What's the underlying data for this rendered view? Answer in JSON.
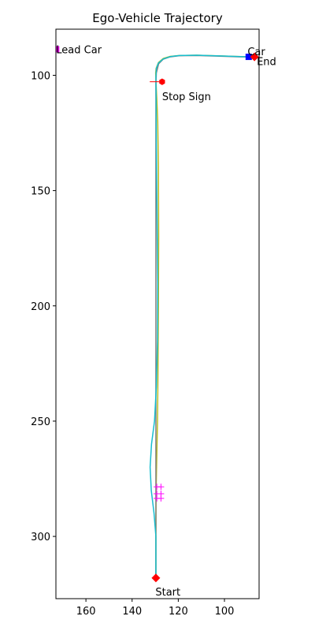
{
  "chart_data": {
    "type": "line",
    "title": "Ego-Vehicle Trajectory",
    "xlabel": "",
    "ylabel": "",
    "xlim": [
      173,
      85
    ],
    "ylim": [
      327,
      80
    ],
    "x_inverted": true,
    "y_inverted": true,
    "grid": false,
    "xticks": [
      160,
      140,
      120,
      100
    ],
    "yticks": [
      100,
      150,
      200,
      250,
      300
    ],
    "series": [
      {
        "color": "#bcbd22",
        "x": [
          129.7,
          129.7,
          129.6,
          129.3,
          129.0,
          128.8,
          128.6,
          128.5,
          128.6,
          128.9,
          129.3,
          129.6,
          129.7,
          129.8,
          129.6,
          128.6,
          126.5,
          123.5,
          119.5,
          112.0,
          102.0,
          93.0,
          89.0
        ],
        "y": [
          318,
          300,
          280,
          265,
          250,
          230,
          200,
          170,
          140,
          120,
          110,
          104,
          101,
          99,
          97,
          94.5,
          92.7,
          91.8,
          91.4,
          91.3,
          91.6,
          91.9,
          92.0
        ]
      },
      {
        "color": "#7f7f7f",
        "x": [
          129.7,
          129.7,
          129.7,
          129.7,
          129.7,
          129.5,
          128.5,
          126.5,
          123.5,
          119.5,
          112.0,
          102.0,
          93.0,
          89.0
        ],
        "y": [
          318,
          280,
          200,
          140,
          104,
          99,
          95,
          93,
          92,
          91.5,
          91.4,
          91.7,
          92.0,
          92.0
        ]
      },
      {
        "color": "#17becf",
        "x": [
          129.7,
          129.7,
          130.5,
          131.7,
          132.2,
          131.6,
          130.3,
          129.5,
          129.0,
          128.9,
          129.2,
          129.5,
          129.6,
          129.7,
          129.5,
          128.6,
          126.5,
          123.5,
          119.5,
          112.0,
          102.0,
          93.0,
          88.5
        ],
        "y": [
          318,
          300,
          290,
          280,
          270,
          260,
          250,
          235,
          215,
          190,
          160,
          130,
          110,
          101,
          97,
          94.7,
          92.9,
          91.9,
          91.4,
          91.3,
          91.6,
          91.9,
          92.0
        ]
      }
    ],
    "markers": [
      {
        "name": "lead-car",
        "shape": "square",
        "color": "#ff00ff",
        "points": [
          [
            172.9,
            88.7
          ]
        ]
      },
      {
        "name": "stop-sign",
        "shape": "hexagon",
        "color": "#ff0000",
        "points": [
          [
            127.0,
            102.8
          ]
        ]
      },
      {
        "name": "stop-line",
        "shape": "hline",
        "color": "#ff0000",
        "points": [
          [
            130.3,
            102.8
          ]
        ]
      },
      {
        "name": "car",
        "shape": "square",
        "color": "#0000ff",
        "points": [
          [
            89.5,
            92.0
          ]
        ]
      },
      {
        "name": "end",
        "shape": "diamond",
        "color": "#ff0000",
        "points": [
          [
            87.0,
            92.0
          ]
        ]
      },
      {
        "name": "start",
        "shape": "diamond",
        "color": "#ff0000",
        "points": [
          [
            129.7,
            318.0
          ]
        ]
      },
      {
        "name": "pedestrians",
        "shape": "plus",
        "color": "#ff00ff",
        "points": [
          [
            129.3,
            278.5
          ],
          [
            127.5,
            278.5
          ],
          [
            129.3,
            281.5
          ],
          [
            127.5,
            281.5
          ],
          [
            129.3,
            283.5
          ],
          [
            127.5,
            283.5
          ]
        ]
      }
    ],
    "annotations": [
      {
        "text": "Lead Car",
        "x": 172.9,
        "y": 88.7,
        "anchor": "start"
      },
      {
        "text": "Stop Sign",
        "x": 127.0,
        "y": 109.0,
        "anchor": "start"
      },
      {
        "text": "Car",
        "x": 90.0,
        "y": 89.5,
        "anchor": "start"
      },
      {
        "text": "End",
        "x": 86.0,
        "y": 93.8,
        "anchor": "start"
      },
      {
        "text": "Start",
        "x": 129.9,
        "y": 324.0,
        "anchor": "start"
      }
    ]
  }
}
